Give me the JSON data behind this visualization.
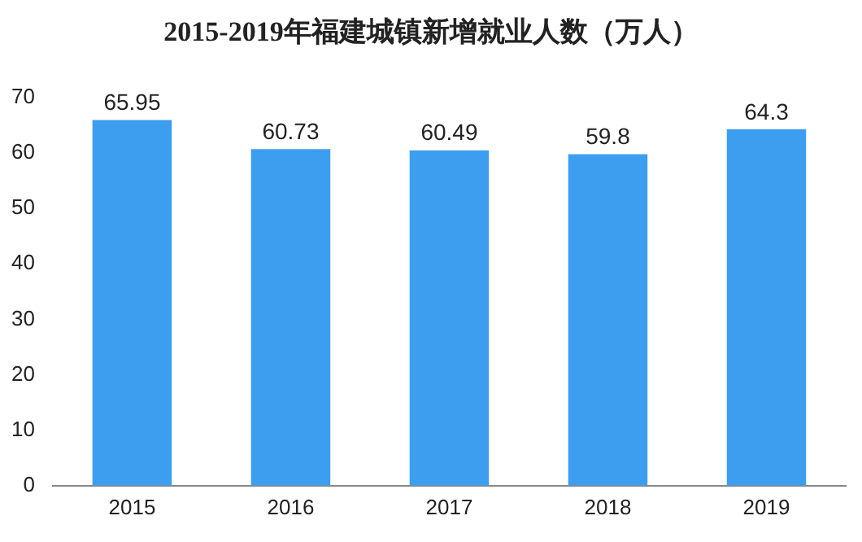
{
  "chart_data": {
    "type": "bar",
    "title": "2015-2019年福建城镇新增就业人数（万人）",
    "categories": [
      "2015",
      "2016",
      "2017",
      "2018",
      "2019"
    ],
    "values": [
      65.95,
      60.73,
      60.49,
      59.8,
      64.3
    ],
    "color": "#3d9ef0",
    "ylim": [
      0,
      70
    ],
    "yticks": [
      0,
      10,
      20,
      30,
      40,
      50,
      60,
      70
    ],
    "grid": false,
    "data_labels": true
  }
}
